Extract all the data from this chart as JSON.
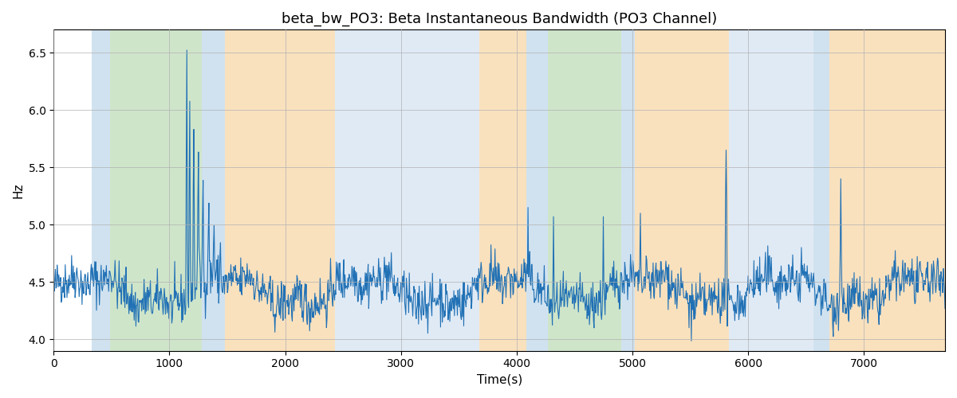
{
  "title": "beta_bw_PO3: Beta Instantaneous Bandwidth (PO3 Channel)",
  "xlabel": "Time(s)",
  "ylabel": "Hz",
  "ylim": [
    3.9,
    6.7
  ],
  "xlim": [
    0,
    7700
  ],
  "line_color": "#2171b5",
  "line_width": 0.8,
  "background_regions": [
    {
      "xstart": 0,
      "xend": 330,
      "color": "#ffffff",
      "alpha": 1.0
    },
    {
      "xstart": 330,
      "xend": 490,
      "color": "#b8d3e8",
      "alpha": 0.65
    },
    {
      "xstart": 490,
      "xend": 1280,
      "color": "#a8d0a0",
      "alpha": 0.55
    },
    {
      "xstart": 1280,
      "xend": 1480,
      "color": "#b8d3e8",
      "alpha": 0.65
    },
    {
      "xstart": 1480,
      "xend": 2430,
      "color": "#f5c98a",
      "alpha": 0.55
    },
    {
      "xstart": 2430,
      "xend": 3680,
      "color": "#c8daee",
      "alpha": 0.55
    },
    {
      "xstart": 3680,
      "xend": 4080,
      "color": "#f5c98a",
      "alpha": 0.55
    },
    {
      "xstart": 4080,
      "xend": 4270,
      "color": "#b8d3e8",
      "alpha": 0.65
    },
    {
      "xstart": 4270,
      "xend": 4900,
      "color": "#a8d0a0",
      "alpha": 0.55
    },
    {
      "xstart": 4900,
      "xend": 5020,
      "color": "#b8d3e8",
      "alpha": 0.65
    },
    {
      "xstart": 5020,
      "xend": 5830,
      "color": "#f5c98a",
      "alpha": 0.55
    },
    {
      "xstart": 5830,
      "xend": 6560,
      "color": "#c8daee",
      "alpha": 0.55
    },
    {
      "xstart": 6560,
      "xend": 6700,
      "color": "#b8d3e8",
      "alpha": 0.65
    },
    {
      "xstart": 6700,
      "xend": 7700,
      "color": "#f5c98a",
      "alpha": 0.55
    }
  ],
  "grid": true,
  "grid_color": "#b0b0b0",
  "grid_alpha": 0.7,
  "seed": 42,
  "n_points": 1540,
  "base_value": 4.42,
  "noise_std": 0.1,
  "title_fontsize": 13,
  "axis_fontsize": 11,
  "yticks": [
    4.0,
    4.5,
    5.0,
    5.5,
    6.0,
    6.5
  ],
  "xticks": [
    0,
    1000,
    2000,
    3000,
    4000,
    5000,
    6000,
    7000
  ]
}
